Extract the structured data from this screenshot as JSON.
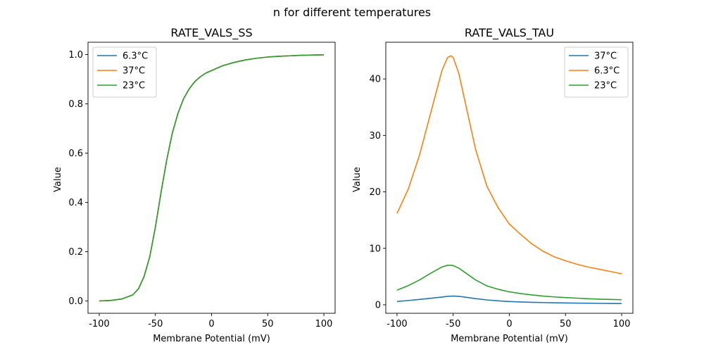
{
  "suptitle": "n for different temperatures",
  "colors": {
    "blue": "#1f77b4",
    "orange": "#ff7f0e",
    "green": "#2ca02c"
  },
  "chart_data": [
    {
      "type": "line",
      "title": "RATE_VALS_SS",
      "xlabel": "Membrane Potential (mV)",
      "ylabel": "Value",
      "xlim": [
        -110,
        110
      ],
      "ylim": [
        -0.05,
        1.05
      ],
      "xticks": [
        -100,
        -50,
        0,
        50,
        100
      ],
      "yticks": [
        0.0,
        0.2,
        0.4,
        0.6,
        0.8,
        1.0
      ],
      "ytick_labels": [
        "0.0",
        "0.2",
        "0.4",
        "0.6",
        "0.8",
        "1.0"
      ],
      "legend": "top-left",
      "series": [
        {
          "name": "6.3°C",
          "color": "#1f77b4",
          "x": [
            -100,
            -90,
            -80,
            -70,
            -65,
            -60,
            -55,
            -50,
            -45,
            -40,
            -35,
            -30,
            -25,
            -20,
            -15,
            -10,
            -5,
            0,
            10,
            20,
            30,
            40,
            50,
            60,
            70,
            80,
            90,
            100
          ],
          "y": [
            0.0,
            0.002,
            0.008,
            0.025,
            0.05,
            0.1,
            0.18,
            0.3,
            0.44,
            0.57,
            0.68,
            0.76,
            0.82,
            0.86,
            0.89,
            0.91,
            0.925,
            0.935,
            0.955,
            0.968,
            0.978,
            0.985,
            0.99,
            0.993,
            0.995,
            0.997,
            0.998,
            0.999
          ]
        },
        {
          "name": "37°C",
          "color": "#ff7f0e",
          "x": [
            -100,
            -90,
            -80,
            -70,
            -65,
            -60,
            -55,
            -50,
            -45,
            -40,
            -35,
            -30,
            -25,
            -20,
            -15,
            -10,
            -5,
            0,
            10,
            20,
            30,
            40,
            50,
            60,
            70,
            80,
            90,
            100
          ],
          "y": [
            0.0,
            0.002,
            0.008,
            0.025,
            0.05,
            0.1,
            0.18,
            0.3,
            0.44,
            0.57,
            0.68,
            0.76,
            0.82,
            0.86,
            0.89,
            0.91,
            0.925,
            0.935,
            0.955,
            0.968,
            0.978,
            0.985,
            0.99,
            0.993,
            0.995,
            0.997,
            0.998,
            0.999
          ]
        },
        {
          "name": "23°C",
          "color": "#2ca02c",
          "x": [
            -100,
            -90,
            -80,
            -70,
            -65,
            -60,
            -55,
            -50,
            -45,
            -40,
            -35,
            -30,
            -25,
            -20,
            -15,
            -10,
            -5,
            0,
            10,
            20,
            30,
            40,
            50,
            60,
            70,
            80,
            90,
            100
          ],
          "y": [
            0.0,
            0.002,
            0.008,
            0.025,
            0.05,
            0.1,
            0.18,
            0.3,
            0.44,
            0.57,
            0.68,
            0.76,
            0.82,
            0.86,
            0.89,
            0.91,
            0.925,
            0.935,
            0.955,
            0.968,
            0.978,
            0.985,
            0.99,
            0.993,
            0.995,
            0.997,
            0.998,
            0.999
          ]
        }
      ]
    },
    {
      "type": "line",
      "title": "RATE_VALS_TAU",
      "xlabel": "Membrane Potential (mV)",
      "ylabel": "Value",
      "xlim": [
        -110,
        110
      ],
      "ylim": [
        -1.5,
        46.5
      ],
      "xticks": [
        -100,
        -50,
        0,
        50,
        100
      ],
      "yticks": [
        0,
        10,
        20,
        30,
        40
      ],
      "ytick_labels": [
        "0",
        "10",
        "20",
        "30",
        "40"
      ],
      "legend": "top-right",
      "series": [
        {
          "name": "37°C",
          "color": "#1f77b4",
          "x": [
            -100,
            -90,
            -80,
            -70,
            -60,
            -55,
            -50,
            -45,
            -40,
            -30,
            -20,
            -10,
            0,
            10,
            20,
            30,
            40,
            50,
            60,
            70,
            80,
            90,
            100
          ],
          "y": [
            0.6,
            0.76,
            0.95,
            1.16,
            1.38,
            1.5,
            1.55,
            1.5,
            1.38,
            1.1,
            0.87,
            0.7,
            0.58,
            0.5,
            0.44,
            0.4,
            0.36,
            0.33,
            0.3,
            0.28,
            0.26,
            0.24,
            0.22
          ]
        },
        {
          "name": "6.3°C",
          "color": "#ff7f0e",
          "x": [
            -100,
            -90,
            -80,
            -70,
            -60,
            -55,
            -52,
            -50,
            -45,
            -40,
            -30,
            -20,
            -10,
            0,
            10,
            20,
            30,
            40,
            50,
            60,
            70,
            80,
            90,
            100
          ],
          "y": [
            16.2,
            20.5,
            26.5,
            34.0,
            41.5,
            43.8,
            44.1,
            43.8,
            41.0,
            36.5,
            27.5,
            21.0,
            17.2,
            14.3,
            12.5,
            10.8,
            9.5,
            8.5,
            7.8,
            7.2,
            6.7,
            6.3,
            5.9,
            5.5
          ]
        },
        {
          "name": "23°C",
          "color": "#2ca02c",
          "x": [
            -100,
            -90,
            -80,
            -70,
            -60,
            -55,
            -52,
            -50,
            -45,
            -40,
            -30,
            -20,
            -10,
            0,
            10,
            20,
            30,
            40,
            50,
            60,
            70,
            80,
            90,
            100
          ],
          "y": [
            2.6,
            3.4,
            4.4,
            5.6,
            6.7,
            7.0,
            7.0,
            6.95,
            6.5,
            5.8,
            4.4,
            3.35,
            2.75,
            2.3,
            2.0,
            1.75,
            1.55,
            1.4,
            1.28,
            1.18,
            1.08,
            1.0,
            0.95,
            0.9
          ]
        }
      ]
    }
  ]
}
